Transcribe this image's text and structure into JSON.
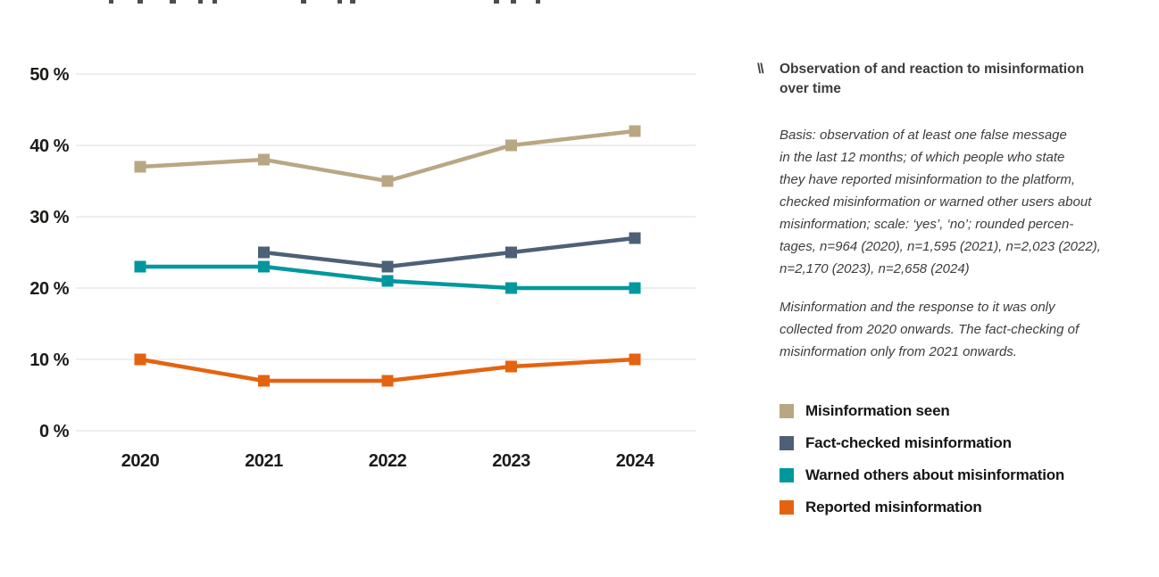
{
  "figure": {
    "background": "#ffffff",
    "top_cutoff_fragment": {
      "note_text": "",
      "marks": [
        {
          "x": 122,
          "w": 5
        },
        {
          "x": 154,
          "w": 6
        },
        {
          "x": 190,
          "w": 7
        },
        {
          "x": 222,
          "w": 5
        },
        {
          "x": 238,
          "w": 5
        },
        {
          "x": 337,
          "w": 6
        },
        {
          "x": 378,
          "w": 5
        },
        {
          "x": 392,
          "w": 6
        },
        {
          "x": 553,
          "w": 6
        },
        {
          "x": 572,
          "w": 6
        },
        {
          "x": 600,
          "w": 5
        }
      ]
    }
  },
  "chart_data": {
    "type": "line",
    "title": "Observation of and reaction to misinformation over time",
    "categories": [
      "2020",
      "2021",
      "2022",
      "2023",
      "2024"
    ],
    "series": [
      {
        "name": "Misinformation seen",
        "color": "#b9a784",
        "values": [
          37,
          38,
          35,
          40,
          42
        ]
      },
      {
        "name": "Fact-checked misinformation",
        "color": "#4d6076",
        "values": [
          null,
          25,
          23,
          25,
          27
        ]
      },
      {
        "name": "Warned others about misinformation",
        "color": "#00979e",
        "values": [
          23,
          23,
          21,
          20,
          20
        ]
      },
      {
        "name": "Reported misinformation",
        "color": "#e56310",
        "values": [
          10,
          7,
          7,
          9,
          10
        ]
      }
    ],
    "y_ticks": [
      0,
      10,
      20,
      30,
      40,
      50
    ],
    "y_tick_suffix": " %",
    "ylim": [
      0,
      52
    ],
    "xlabel": "",
    "ylabel": "",
    "grid": true,
    "legend_position": "right",
    "styles": {
      "grid_color": "#e3e3e3",
      "axis_label_color": "#1b1b19",
      "line_width": 4.5,
      "marker_size": 13
    }
  },
  "panel": {
    "icon": "\\\\",
    "title_lines": [
      "Observation of and reaction to misinformation",
      "over time"
    ],
    "basis_lines": [
      "Basis: observation of at least one false message",
      "in the last 12 months; of which people who state",
      "they have reported misinformation to the platform,",
      "checked misinformation or warned other users about",
      "misinformation; scale: ‘yes’, ‘no’; rounded percen-",
      "tages, n=964 (2020), n=1,595 (2021), n=2,023 (2022),",
      "n=2,170 (2023), n=2,658 (2024)"
    ],
    "collection_lines": [
      "Misinformation and the response to it was only",
      "collected from 2020 onwards. The fact-checking of",
      "misinformation only from 2021 onwards."
    ],
    "legend": [
      {
        "label": "Misinformation seen",
        "color": "#b9a784"
      },
      {
        "label": "Fact-checked misinformation",
        "color": "#4d6076"
      },
      {
        "label": "Warned others about misinformation",
        "color": "#00979e"
      },
      {
        "label": "Reported misinformation",
        "color": "#e56310"
      }
    ]
  }
}
